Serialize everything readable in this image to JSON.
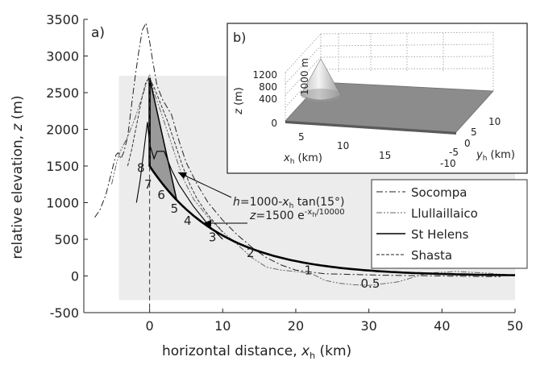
{
  "chart_data": {
    "type": "line",
    "panel_label": "a)",
    "xlabel_main": "horizontal distance, ",
    "xlabel_var": "x",
    "xlabel_sub": "h",
    "xlabel_unit": " (km)",
    "ylabel_main": "relative elevation, ",
    "ylabel_var": "z",
    "ylabel_unit": " (m)",
    "xlim": [
      -9,
      50
    ],
    "ylim": [
      -500,
      3500
    ],
    "xticks": [
      0,
      10,
      20,
      30,
      40,
      50
    ],
    "yticks": [
      -500,
      0,
      500,
      1000,
      1500,
      2000,
      2500,
      3000,
      3500
    ],
    "background_box": {
      "x": [
        -4.2,
        50
      ],
      "y": [
        -330,
        2730
      ]
    },
    "legend": {
      "position": "center-right",
      "entries": [
        "Socompa",
        "Llullaillaico",
        "St Helens",
        "Shasta"
      ]
    },
    "series": [
      {
        "name": "Socompa",
        "style": "dashdot",
        "x": [
          -7.5,
          -6.8,
          -6,
          -5,
          -4.6,
          -4.3,
          -3.9,
          -3.5,
          -3,
          -2.5,
          -2,
          -1.5,
          -1,
          -0.5,
          0,
          0.4,
          1,
          1.8,
          2.4,
          3,
          4,
          5,
          6.5,
          8,
          10,
          12,
          14,
          16,
          18,
          20,
          24,
          28,
          32,
          36,
          40,
          44,
          48
        ],
        "y": [
          800,
          900,
          1100,
          1500,
          1650,
          1680,
          1600,
          1700,
          1900,
          2300,
          2700,
          3050,
          3350,
          3450,
          3200,
          2950,
          2600,
          2400,
          2300,
          2200,
          1850,
          1550,
          1250,
          1000,
          760,
          560,
          390,
          250,
          150,
          80,
          30,
          20,
          10,
          5,
          0,
          -5,
          -10
        ]
      },
      {
        "name": "Llullaillaico",
        "style": "dashdotdot",
        "x": [
          -5.2,
          -4.5,
          -4,
          -3,
          -2,
          -1,
          0,
          0.6,
          1.5,
          2.5,
          3.5,
          4.5,
          6,
          8,
          10,
          12,
          14,
          16,
          18,
          20,
          22,
          24,
          26,
          28,
          30,
          34,
          38,
          42,
          46,
          50
        ],
        "y": [
          1250,
          1550,
          1700,
          1900,
          2150,
          2450,
          2750,
          2500,
          2250,
          1950,
          1650,
          1350,
          1050,
          800,
          600,
          430,
          250,
          120,
          80,
          60,
          40,
          -60,
          -100,
          -120,
          -130,
          -80,
          40,
          60,
          40,
          10
        ]
      },
      {
        "name": "St Helens",
        "style": "solid",
        "x": [
          -1.8,
          -1.3,
          -0.8,
          -0.3,
          0,
          0.6,
          1,
          2,
          3,
          4,
          5,
          6,
          8,
          10
        ],
        "y": [
          1000,
          1300,
          1700,
          2100,
          1800,
          1600,
          1700,
          1700,
          1450,
          1250,
          1100,
          950,
          700,
          500
        ]
      },
      {
        "name": "Shasta",
        "style": "dashed",
        "x": [
          -3,
          -2.5,
          -2,
          -1.5,
          -1,
          -0.5,
          0,
          0.7,
          1.5,
          2.5,
          3.5,
          4.5,
          5.5,
          6.5,
          8,
          10
        ],
        "y": [
          1500,
          1700,
          1950,
          2200,
          2450,
          2650,
          2700,
          2550,
          2350,
          2100,
          1800,
          1500,
          1250,
          1050,
          830,
          600
        ]
      }
    ],
    "model_curve": {
      "formula_prefix": "z",
      "formula_rest": "=1500 e",
      "formula_exp": "-x",
      "formula_exp_sub": "h",
      "formula_exp_end": "/10000"
    },
    "cone_line": {
      "formula_prefix": "h",
      "formula_rest_1": "=1000-",
      "formula_var": "x",
      "formula_sub": "h",
      "formula_rest_2": " tan(15°)"
    },
    "contour_labels": [
      {
        "text": "8",
        "x": -1.2,
        "y": 1420
      },
      {
        "text": "7",
        "x": -0.2,
        "y": 1190
      },
      {
        "text": "6",
        "x": 1.6,
        "y": 1050
      },
      {
        "text": "5",
        "x": 3.4,
        "y": 860
      },
      {
        "text": "4",
        "x": 5.2,
        "y": 700
      },
      {
        "text": "3",
        "x": 8.6,
        "y": 470
      },
      {
        "text": "2",
        "x": 13.8,
        "y": 260
      },
      {
        "text": "1",
        "x": 21.7,
        "y": 20
      },
      {
        "text": "0.5",
        "x": 30.2,
        "y": -160
      }
    ]
  },
  "inset": {
    "panel_label": "b)",
    "zlabel_var": "z",
    "zlabel_unit": " (m)",
    "zticks": [
      "1200",
      "800",
      "400",
      "0"
    ],
    "xlabel_var": "x",
    "xlabel_sub": "h",
    "xlabel_unit": " (km)",
    "xticks": [
      "5",
      "10",
      "15"
    ],
    "ylabel_var": "y",
    "ylabel_sub": "h",
    "ylabel_unit": " (km)",
    "yticks": [
      "10",
      "5",
      "0",
      "-5",
      "-10"
    ],
    "cone_label": "1000 m"
  },
  "colors": {
    "background_box": "#ececec",
    "fill_wedge": "#9a9a9a",
    "inset_surface": "#8c8c8c",
    "inset_border": "#222222"
  }
}
